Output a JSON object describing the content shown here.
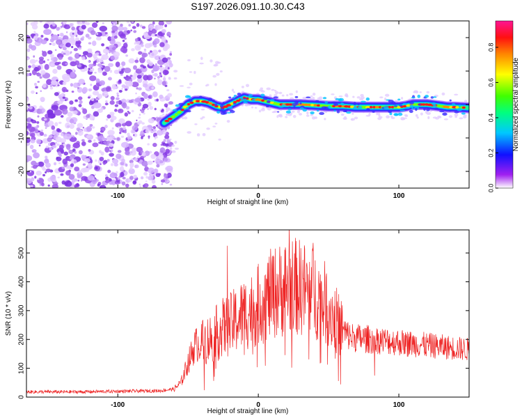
{
  "title": "S197.2026.091.10.30.C43",
  "chart_data": [
    {
      "type": "heatmap",
      "xlabel": "Height of straight line (km)",
      "ylabel": "Frequency (Hz)",
      "xlim": [
        -165,
        150
      ],
      "ylim": [
        -25,
        25
      ],
      "x_ticks": [
        -100,
        0,
        100
      ],
      "x_tick_labels": [
        "-100",
        "0",
        "100"
      ],
      "y_ticks": [
        20,
        10,
        0,
        -10,
        -20
      ],
      "y_tick_labels": [
        "20",
        "10",
        "0",
        "-10",
        "-20"
      ],
      "colorbar": {
        "label": "Normalized spectral amplitude",
        "range": [
          0.0,
          0.95
        ],
        "ticks": [
          0.0,
          0.2,
          0.4,
          0.6,
          0.8
        ],
        "tick_labels": [
          "0.0",
          "0.2",
          "0.4",
          "0.6",
          "0.8"
        ]
      },
      "noise_region_x": [
        -165,
        -65
      ],
      "ridge": {
        "x": [
          -67,
          -60,
          -55,
          -50,
          -45,
          -40,
          -35,
          -30,
          -25,
          -20,
          -15,
          -10,
          -5,
          0,
          5,
          10,
          15,
          20,
          30,
          40,
          50,
          60,
          70,
          80,
          90,
          100,
          105,
          110,
          115,
          120,
          130,
          135,
          140,
          150
        ],
        "y": [
          -5.5,
          -3.5,
          -2.0,
          0.0,
          1.0,
          1.0,
          0.5,
          -0.5,
          -1.0,
          0.0,
          1.0,
          2.0,
          1.5,
          1.5,
          1.0,
          0.5,
          0.0,
          0.0,
          0.0,
          -0.2,
          -0.5,
          -0.5,
          -0.8,
          -0.8,
          -0.8,
          -0.8,
          -0.5,
          0.0,
          0.0,
          0.0,
          -0.5,
          -0.8,
          -0.8,
          -1.0
        ]
      }
    },
    {
      "type": "line",
      "xlabel": "Height of straight line (km)",
      "ylabel": "SNR (10 * v/v)",
      "xlim": [
        -165,
        150
      ],
      "ylim": [
        0,
        580
      ],
      "x_ticks": [
        -100,
        0,
        100
      ],
      "x_tick_labels": [
        "-100",
        "0",
        "100"
      ],
      "y_ticks": [
        0,
        100,
        200,
        300,
        400,
        500
      ],
      "y_tick_labels": [
        "0",
        "100",
        "200",
        "300",
        "400",
        "500"
      ],
      "color": "#ee2222",
      "envelope": {
        "x": [
          -165,
          -130,
          -100,
          -70,
          -60,
          -55,
          -50,
          -45,
          -40,
          -35,
          -30,
          -25,
          -20,
          -15,
          -10,
          -5,
          0,
          5,
          10,
          15,
          20,
          25,
          30,
          35,
          40,
          45,
          50,
          55,
          60,
          65,
          70,
          80,
          90,
          100,
          110,
          120,
          130,
          140,
          150
        ],
        "y": [
          18,
          18,
          20,
          22,
          28,
          50,
          120,
          180,
          190,
          200,
          220,
          240,
          250,
          270,
          290,
          300,
          320,
          340,
          360,
          370,
          380,
          385,
          380,
          370,
          360,
          340,
          310,
          270,
          230,
          210,
          205,
          200,
          195,
          190,
          185,
          180,
          175,
          170,
          165
        ]
      },
      "spikes": [
        {
          "x": -22,
          "y": 525
        },
        {
          "x": 22,
          "y": 590
        },
        {
          "x": 39,
          "y": 535
        }
      ]
    }
  ]
}
